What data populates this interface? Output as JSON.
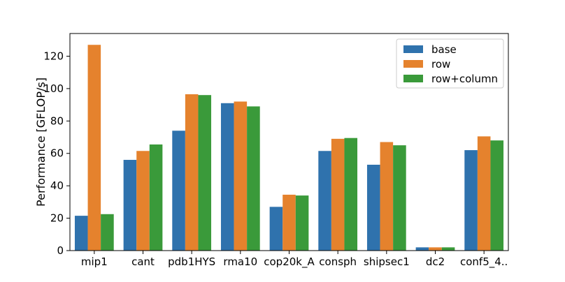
{
  "chart_data": {
    "type": "bar",
    "title": "",
    "xlabel": "",
    "ylabel": "Performance [GFLOP/s]",
    "ylim": [
      0,
      134
    ],
    "yticks": [
      0,
      20,
      40,
      60,
      80,
      100,
      120
    ],
    "grid": false,
    "legend_position": "top-right",
    "categories": [
      "mip1",
      "cant",
      "pdb1HYS",
      "rma10",
      "cop20k_A",
      "consph",
      "shipsec1",
      "dc2",
      "conf5_4.."
    ],
    "series": [
      {
        "name": "base",
        "color": "#2f72ad",
        "values": [
          21.5,
          56,
          74,
          91,
          27,
          61.5,
          53,
          2,
          62
        ]
      },
      {
        "name": "row",
        "color": "#e5822d",
        "values": [
          127,
          61.5,
          96.5,
          92,
          34.5,
          69,
          67,
          2,
          70.5
        ]
      },
      {
        "name": "row+column",
        "color": "#3a9a3a",
        "values": [
          22.5,
          65.5,
          96,
          89,
          34,
          69.5,
          65,
          2,
          68
        ]
      }
    ]
  }
}
